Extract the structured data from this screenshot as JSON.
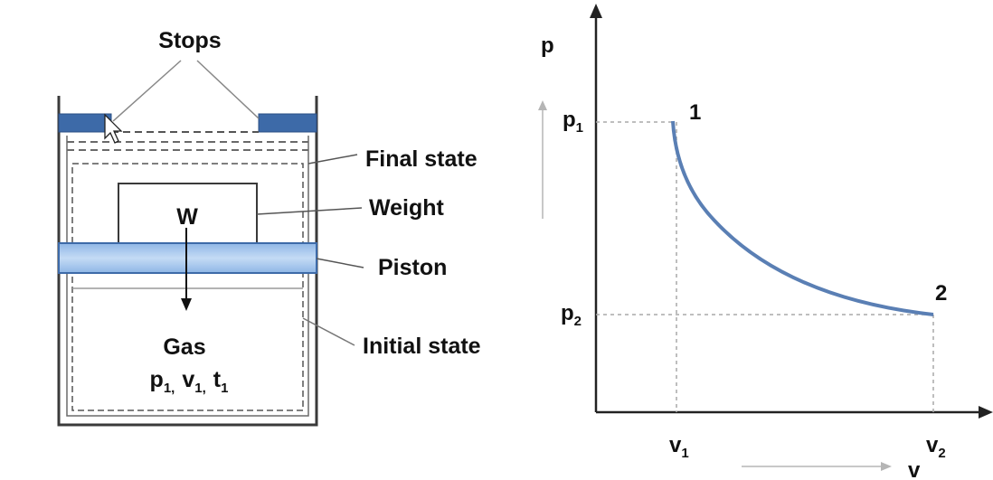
{
  "diagram": {
    "labels": {
      "stops": "Stops",
      "final_state": "Final state",
      "weight": "Weight",
      "piston": "Piston",
      "initial_state": "Initial state",
      "weight_symbol": "W",
      "gas": "Gas",
      "gas_state": {
        "p": "p",
        "p_sub": "1,",
        "v": "v",
        "v_sub": "1,",
        "t": "t",
        "t_sub": "1"
      }
    },
    "colors": {
      "line": "#3a3a3a",
      "stop_fill": "#3d6aa8",
      "piston_fill": "#a9c8ee",
      "piston_edge": "#3d6aa8",
      "curve": "#5a7fb4",
      "guide": "#a8a8a8"
    }
  },
  "chart_data": {
    "type": "line",
    "title": "",
    "xlabel": "v",
    "ylabel": "p",
    "points": [
      {
        "label": "1",
        "x_tick": "v",
        "x_sub": "1",
        "y_tick": "p",
        "y_sub": "1"
      },
      {
        "label": "2",
        "x_tick": "v",
        "x_sub": "2",
        "y_tick": "p",
        "y_sub": "2"
      }
    ]
  }
}
